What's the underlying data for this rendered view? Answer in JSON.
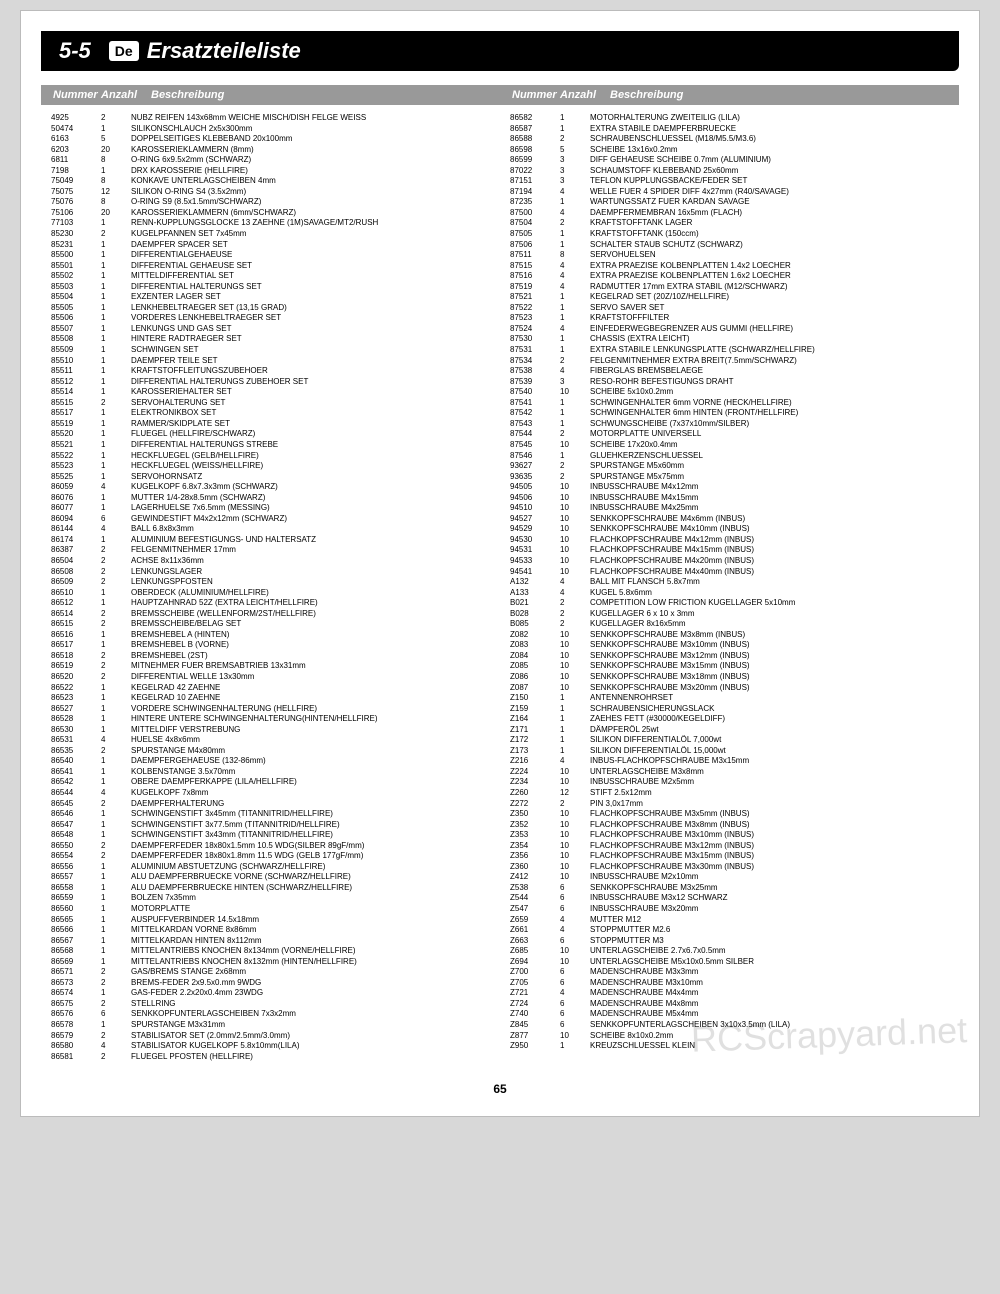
{
  "header": {
    "section_num": "5-5",
    "lang": "De",
    "title": "Ersatzteileliste"
  },
  "column_headers": {
    "num": "Nummer",
    "qty": "Anzahl",
    "desc": "Beschreibung"
  },
  "footer": {
    "page_num": "65"
  },
  "watermark": "RCScrapyard.net",
  "parts_left": [
    {
      "n": "4925",
      "q": "2",
      "d": "NUBZ REIFEN 143x68mm WEICHE MISCH/DISH FELGE WEISS"
    },
    {
      "n": "50474",
      "q": "1",
      "d": "SILIKONSCHLAUCH 2x5x300mm"
    },
    {
      "n": "6163",
      "q": "5",
      "d": "DOPPELSEITIGES KLEBEBAND 20x100mm"
    },
    {
      "n": "6203",
      "q": "20",
      "d": "KAROSSERIEKLAMMERN (8mm)"
    },
    {
      "n": "6811",
      "q": "8",
      "d": "O-RING 6x9.5x2mm (SCHWARZ)"
    },
    {
      "n": "7198",
      "q": "1",
      "d": "DRX KAROSSERIE (HELLFIRE)"
    },
    {
      "n": "75049",
      "q": "8",
      "d": "KONKAVE UNTERLAGSCHEIBEN 4mm"
    },
    {
      "n": "75075",
      "q": "12",
      "d": "SILIKON O-RING S4 (3.5x2mm)"
    },
    {
      "n": "75076",
      "q": "8",
      "d": "O-RING S9 (8.5x1.5mm/SCHWARZ)"
    },
    {
      "n": "75106",
      "q": "20",
      "d": "KAROSSERIEKLAMMERN (6mm/SCHWARZ)"
    },
    {
      "n": "77103",
      "q": "1",
      "d": "RENN-KUPPLUNGSGLOCKE 13 ZAEHNE (1M)SAVAGE/MT2/RUSH"
    },
    {
      "n": "85230",
      "q": "2",
      "d": "KUGELPFANNEN SET 7x45mm"
    },
    {
      "n": "85231",
      "q": "1",
      "d": "DAEMPFER SPACER SET"
    },
    {
      "n": "85500",
      "q": "1",
      "d": "DIFFERENTIALGEHAEUSE"
    },
    {
      "n": "85501",
      "q": "1",
      "d": "DIFFERENTIAL GEHAEUSE SET"
    },
    {
      "n": "85502",
      "q": "1",
      "d": "MITTELDIFFERENTIAL SET"
    },
    {
      "n": "85503",
      "q": "1",
      "d": "DIFFERENTIAL HALTERUNGS SET"
    },
    {
      "n": "85504",
      "q": "1",
      "d": "EXZENTER LAGER SET"
    },
    {
      "n": "85505",
      "q": "1",
      "d": "LENKHEBELTRAEGER SET (13,15 GRAD)"
    },
    {
      "n": "85506",
      "q": "1",
      "d": "VORDERES LENKHEBELTRAEGER SET"
    },
    {
      "n": "85507",
      "q": "1",
      "d": "LENKUNGS UND GAS SET"
    },
    {
      "n": "85508",
      "q": "1",
      "d": "HINTERE RADTRAEGER SET"
    },
    {
      "n": "85509",
      "q": "1",
      "d": "SCHWINGEN SET"
    },
    {
      "n": "85510",
      "q": "1",
      "d": "DAEMPFER TEILE SET"
    },
    {
      "n": "85511",
      "q": "1",
      "d": "KRAFTSTOFFLEITUNGSZUBEHOER"
    },
    {
      "n": "85512",
      "q": "1",
      "d": "DIFFERENTIAL HALTERUNGS ZUBEHOER SET"
    },
    {
      "n": "85514",
      "q": "1",
      "d": "KAROSSERIEHALTER SET"
    },
    {
      "n": "85515",
      "q": "2",
      "d": "SERVOHALTERUNG SET"
    },
    {
      "n": "85517",
      "q": "1",
      "d": "ELEKTRONIKBOX SET"
    },
    {
      "n": "85519",
      "q": "1",
      "d": "RAMMER/SKIDPLATE SET"
    },
    {
      "n": "85520",
      "q": "1",
      "d": "FLUEGEL (HELLFIRE/SCHWARZ)"
    },
    {
      "n": "85521",
      "q": "1",
      "d": "DIFFERENTIAL HALTERUNGS STREBE"
    },
    {
      "n": "85522",
      "q": "1",
      "d": "HECKFLUEGEL (GELB/HELLFIRE)"
    },
    {
      "n": "85523",
      "q": "1",
      "d": "HECKFLUEGEL (WEISS/HELLFIRE)"
    },
    {
      "n": "85525",
      "q": "1",
      "d": "SERVOHORNSATZ"
    },
    {
      "n": "86059",
      "q": "4",
      "d": "KUGELKOPF 6.8x7.3x3mm (SCHWARZ)"
    },
    {
      "n": "86076",
      "q": "1",
      "d": "MUTTER 1/4-28x8.5mm (SCHWARZ)"
    },
    {
      "n": "86077",
      "q": "1",
      "d": "LAGERHUELSE 7x6.5mm (MESSING)"
    },
    {
      "n": "86094",
      "q": "6",
      "d": "GEWINDESTIFT M4x2x12mm (SCHWARZ)"
    },
    {
      "n": "86144",
      "q": "4",
      "d": "BALL 6.8x8x3mm"
    },
    {
      "n": "86174",
      "q": "1",
      "d": "ALUMINIUM BEFESTIGUNGS- UND HALTERSATZ"
    },
    {
      "n": "86387",
      "q": "2",
      "d": "FELGENMITNEHMER 17mm"
    },
    {
      "n": "86504",
      "q": "2",
      "d": "ACHSE 8x11x36mm"
    },
    {
      "n": "86508",
      "q": "2",
      "d": "LENKUNGSLAGER"
    },
    {
      "n": "86509",
      "q": "2",
      "d": "LENKUNGSPFOSTEN"
    },
    {
      "n": "86510",
      "q": "1",
      "d": "OBERDECK (ALUMINIUM/HELLFIRE)"
    },
    {
      "n": "86512",
      "q": "1",
      "d": "HAUPTZAHNRAD 52Z (EXTRA LEICHT/HELLFIRE)"
    },
    {
      "n": "86514",
      "q": "2",
      "d": "BREMSSCHEIBE (WELLENFORM/2ST/HELLFIRE)"
    },
    {
      "n": "86515",
      "q": "2",
      "d": "BREMSSCHEIBE/BELAG SET"
    },
    {
      "n": "86516",
      "q": "1",
      "d": "BREMSHEBEL A (HINTEN)"
    },
    {
      "n": "86517",
      "q": "1",
      "d": "BREMSHEBEL B (VORNE)"
    },
    {
      "n": "86518",
      "q": "2",
      "d": "BREMSHEBEL (2ST)"
    },
    {
      "n": "86519",
      "q": "2",
      "d": "MITNEHMER FUER BREMSABTRIEB 13x31mm"
    },
    {
      "n": "86520",
      "q": "2",
      "d": "DIFFERENTIAL WELLE 13x30mm"
    },
    {
      "n": "86522",
      "q": "1",
      "d": "KEGELRAD 42 ZAEHNE"
    },
    {
      "n": "86523",
      "q": "1",
      "d": "KEGELRAD 10 ZAEHNE"
    },
    {
      "n": "86527",
      "q": "1",
      "d": "VORDERE SCHWINGENHALTERUNG (HELLFIRE)"
    },
    {
      "n": "86528",
      "q": "1",
      "d": "HINTERE UNTERE SCHWINGENHALTERUNG(HINTEN/HELLFIRE)"
    },
    {
      "n": "86530",
      "q": "1",
      "d": "MITTELDIFF VERSTREBUNG"
    },
    {
      "n": "86531",
      "q": "4",
      "d": "HUELSE 4x8x6mm"
    },
    {
      "n": "86535",
      "q": "2",
      "d": "SPURSTANGE M4x80mm"
    },
    {
      "n": "86540",
      "q": "1",
      "d": "DAEMPFERGEHAEUSE (132-86mm)"
    },
    {
      "n": "86541",
      "q": "1",
      "d": "KOLBENSTANGE 3.5x70mm"
    },
    {
      "n": "86542",
      "q": "1",
      "d": "OBERE DAEMPFERKAPPE (LILA/HELLFIRE)"
    },
    {
      "n": "86544",
      "q": "4",
      "d": "KUGELKOPF 7x8mm"
    },
    {
      "n": "86545",
      "q": "2",
      "d": "DAEMPFERHALTERUNG"
    },
    {
      "n": "86546",
      "q": "1",
      "d": "SCHWINGENSTIFT 3x45mm (TITANNITRID/HELLFIRE)"
    },
    {
      "n": "86547",
      "q": "1",
      "d": "SCHWINGENSTIFT 3x77.5mm (TITANNITRID/HELLFIRE)"
    },
    {
      "n": "86548",
      "q": "1",
      "d": "SCHWINGENSTIFT 3x43mm (TITANNITRID/HELLFIRE)"
    },
    {
      "n": "86550",
      "q": "2",
      "d": "DAEMPFERFEDER 18x80x1.5mm 10.5 WDG(SILBER 89gF/mm)"
    },
    {
      "n": "86554",
      "q": "2",
      "d": "DAEMPFERFEDER 18x80x1.8mm 11.5 WDG (GELB 177gF/mm)"
    },
    {
      "n": "86556",
      "q": "1",
      "d": "ALUMINIUM ABSTUETZUNG (SCHWARZ/HELLFIRE)"
    },
    {
      "n": "86557",
      "q": "1",
      "d": "ALU DAEMPFERBRUECKE VORNE (SCHWARZ/HELLFIRE)"
    },
    {
      "n": "86558",
      "q": "1",
      "d": "ALU DAEMPFERBRUECKE HINTEN (SCHWARZ/HELLFIRE)"
    },
    {
      "n": "86559",
      "q": "1",
      "d": "BOLZEN 7x35mm"
    },
    {
      "n": "86560",
      "q": "1",
      "d": "MOTORPLATTE"
    },
    {
      "n": "86565",
      "q": "1",
      "d": "AUSPUFFVERBINDER 14.5x18mm"
    },
    {
      "n": "86566",
      "q": "1",
      "d": "MITTELKARDAN VORNE 8x86mm"
    },
    {
      "n": "86567",
      "q": "1",
      "d": "MITTELKARDAN HINTEN 8x112mm"
    },
    {
      "n": "86568",
      "q": "1",
      "d": "MITTELANTRIEBS KNOCHEN 8x134mm (VORNE/HELLFIRE)"
    },
    {
      "n": "86569",
      "q": "1",
      "d": "MITTELANTRIEBS KNOCHEN 8x132mm (HINTEN/HELLFIRE)"
    },
    {
      "n": "86571",
      "q": "2",
      "d": "GAS/BREMS STANGE 2x68mm"
    },
    {
      "n": "86573",
      "q": "2",
      "d": "BREMS-FEDER 2x9.5x0.mm 9WDG"
    },
    {
      "n": "86574",
      "q": "1",
      "d": "GAS-FEDER 2.2x20x0.4mm 23WDG"
    },
    {
      "n": "86575",
      "q": "2",
      "d": "STELLRING"
    },
    {
      "n": "86576",
      "q": "6",
      "d": "SENKKOPFUNTERLAGSCHEIBEN 7x3x2mm"
    },
    {
      "n": "86578",
      "q": "1",
      "d": "SPURSTANGE M3x31mm"
    },
    {
      "n": "86579",
      "q": "2",
      "d": "STABILISATOR SET (2.0mm/2.5mm/3.0mm)"
    },
    {
      "n": "86580",
      "q": "4",
      "d": "STABILISATOR KUGELKOPF 5.8x10mm(LILA)"
    },
    {
      "n": "86581",
      "q": "2",
      "d": "FLUEGEL PFOSTEN (HELLFIRE)"
    }
  ],
  "parts_right": [
    {
      "n": "86582",
      "q": "1",
      "d": "MOTORHALTERUNG ZWEITEILIG (LILA)"
    },
    {
      "n": "86587",
      "q": "1",
      "d": "EXTRA STABILE DAEMPFERBRUECKE"
    },
    {
      "n": "86588",
      "q": "2",
      "d": "SCHRAUBENSCHLUESSEL (M18/M5.5/M3.6)"
    },
    {
      "n": "86598",
      "q": "5",
      "d": "SCHEIBE 13x16x0.2mm"
    },
    {
      "n": "86599",
      "q": "3",
      "d": "DIFF GEHAEUSE SCHEIBE 0.7mm (ALUMINIUM)"
    },
    {
      "n": "87022",
      "q": "3",
      "d": "SCHAUMSTOFF KLEBEBAND 25x60mm"
    },
    {
      "n": "87151",
      "q": "3",
      "d": "TEFLON KUPPLUNGSBACKE/FEDER SET"
    },
    {
      "n": "87194",
      "q": "4",
      "d": "WELLE FUER 4 SPIDER DIFF 4x27mm (R40/SAVAGE)"
    },
    {
      "n": "87235",
      "q": "1",
      "d": "WARTUNGSSATZ FUER KARDAN SAVAGE"
    },
    {
      "n": "87500",
      "q": "4",
      "d": "DAEMPFERMEMBRAN 16x5mm (FLACH)"
    },
    {
      "n": "87504",
      "q": "2",
      "d": "KRAFTSTOFFTANK LAGER"
    },
    {
      "n": "87505",
      "q": "1",
      "d": "KRAFTSTOFFTANK (150ccm)"
    },
    {
      "n": "87506",
      "q": "1",
      "d": "SCHALTER STAUB SCHUTZ (SCHWARZ)"
    },
    {
      "n": "87511",
      "q": "8",
      "d": "SERVOHUELSEN"
    },
    {
      "n": "87515",
      "q": "4",
      "d": "EXTRA PRAEZISE KOLBENPLATTEN 1.4x2 LOECHER"
    },
    {
      "n": "87516",
      "q": "4",
      "d": "EXTRA PRAEZISE KOLBENPLATTEN 1.6x2 LOECHER"
    },
    {
      "n": "87519",
      "q": "4",
      "d": "RADMUTTER 17mm EXTRA STABIL (M12/SCHWARZ)"
    },
    {
      "n": "87521",
      "q": "1",
      "d": "KEGELRAD SET (20Z/10Z/HELLFIRE)"
    },
    {
      "n": "87522",
      "q": "1",
      "d": "SERVO SAVER SET"
    },
    {
      "n": "87523",
      "q": "1",
      "d": "KRAFTSTOFFFILTER"
    },
    {
      "n": "87524",
      "q": "4",
      "d": "EINFEDERWEGBEGRENZER AUS GUMMI (HELLFIRE)"
    },
    {
      "n": "87530",
      "q": "1",
      "d": "CHASSIS (EXTRA LEICHT)"
    },
    {
      "n": "87531",
      "q": "1",
      "d": "EXTRA STABILE LENKUNGSPLATTE (SCHWARZ/HELLFIRE)"
    },
    {
      "n": "87534",
      "q": "2",
      "d": "FELGENMITNEHMER EXTRA BREIT(7.5mm/SCHWARZ)"
    },
    {
      "n": "87538",
      "q": "4",
      "d": "FIBERGLAS BREMSBELAEGE"
    },
    {
      "n": "87539",
      "q": "3",
      "d": "RESO-ROHR BEFESTIGUNGS DRAHT"
    },
    {
      "n": "87540",
      "q": "10",
      "d": "SCHEIBE 5x10x0.2mm"
    },
    {
      "n": "87541",
      "q": "1",
      "d": "SCHWINGENHALTER 6mm VORNE (HECK/HELLFIRE)"
    },
    {
      "n": "87542",
      "q": "1",
      "d": "SCHWINGENHALTER 6mm HINTEN (FRONT/HELLFIRE)"
    },
    {
      "n": "87543",
      "q": "1",
      "d": "SCHWUNGSCHEIBE (7x37x10mm/SILBER)"
    },
    {
      "n": "87544",
      "q": "2",
      "d": "MOTORPLATTE UNIVERSELL"
    },
    {
      "n": "87545",
      "q": "10",
      "d": "SCHEIBE 17x20x0.4mm"
    },
    {
      "n": "87546",
      "q": "1",
      "d": "GLUEHKERZENSCHLUESSEL"
    },
    {
      "n": "93627",
      "q": "2",
      "d": "SPURSTANGE M5x60mm"
    },
    {
      "n": "93635",
      "q": "2",
      "d": "SPURSTANGE M5x75mm"
    },
    {
      "n": "94505",
      "q": "10",
      "d": "INBUSSCHRAUBE M4x12mm"
    },
    {
      "n": "94506",
      "q": "10",
      "d": "INBUSSCHRAUBE M4x15mm"
    },
    {
      "n": "94510",
      "q": "10",
      "d": "INBUSSCHRAUBE M4x25mm"
    },
    {
      "n": "94527",
      "q": "10",
      "d": "SENKKOPFSCHRAUBE M4x6mm (INBUS)"
    },
    {
      "n": "94529",
      "q": "10",
      "d": "SENKKOPFSCHRAUBE M4x10mm (INBUS)"
    },
    {
      "n": "94530",
      "q": "10",
      "d": "FLACHKOPFSCHRAUBE M4x12mm (INBUS)"
    },
    {
      "n": "94531",
      "q": "10",
      "d": "FLACHKOPFSCHRAUBE M4x15mm (INBUS)"
    },
    {
      "n": "94533",
      "q": "10",
      "d": "FLACHKOPFSCHRAUBE M4x20mm (INBUS)"
    },
    {
      "n": "94541",
      "q": "10",
      "d": "FLACHKOPFSCHRAUBE M4x40mm (INBUS)"
    },
    {
      "n": "A132",
      "q": "4",
      "d": "BALL MIT FLANSCH 5.8x7mm"
    },
    {
      "n": "A133",
      "q": "4",
      "d": "KUGEL 5.8x6mm"
    },
    {
      "n": "B021",
      "q": "2",
      "d": "COMPETITION LOW FRICTION KUGELLAGER 5x10mm"
    },
    {
      "n": "B028",
      "q": "2",
      "d": "KUGELLAGER 6 x 10 x 3mm"
    },
    {
      "n": "B085",
      "q": "2",
      "d": "KUGELLAGER 8x16x5mm"
    },
    {
      "n": "Z082",
      "q": "10",
      "d": "SENKKOPFSCHRAUBE M3x8mm (INBUS)"
    },
    {
      "n": "Z083",
      "q": "10",
      "d": "SENKKOPFSCHRAUBE M3x10mm (INBUS)"
    },
    {
      "n": "Z084",
      "q": "10",
      "d": "SENKKOPFSCHRAUBE M3x12mm (INBUS)"
    },
    {
      "n": "Z085",
      "q": "10",
      "d": "SENKKOPFSCHRAUBE M3x15mm (INBUS)"
    },
    {
      "n": "Z086",
      "q": "10",
      "d": "SENKKOPFSCHRAUBE M3x18mm (INBUS)"
    },
    {
      "n": "Z087",
      "q": "10",
      "d": "SENKKOPFSCHRAUBE M3x20mm (INBUS)"
    },
    {
      "n": "Z150",
      "q": "1",
      "d": "ANTENNENROHRSET"
    },
    {
      "n": "Z159",
      "q": "1",
      "d": "SCHRAUBENSICHERUNGSLACK"
    },
    {
      "n": "Z164",
      "q": "1",
      "d": "ZAEHES FETT (#30000/KEGELDIFF)"
    },
    {
      "n": "Z171",
      "q": "1",
      "d": "DÄMPFERÖL 25wt"
    },
    {
      "n": "Z172",
      "q": "1",
      "d": "SILIKON DIFFERENTIALÖL 7,000wt"
    },
    {
      "n": "Z173",
      "q": "1",
      "d": "SILIKON DIFFERENTIALÖL 15,000wt"
    },
    {
      "n": "Z216",
      "q": "4",
      "d": "INBUS-FLACHKOPFSCHRAUBE M3x15mm"
    },
    {
      "n": "Z224",
      "q": "10",
      "d": "UNTERLAGSCHEIBE M3x8mm"
    },
    {
      "n": "Z234",
      "q": "10",
      "d": "INBUSSCHRAUBE M2x5mm"
    },
    {
      "n": "Z260",
      "q": "12",
      "d": "STIFT 2.5x12mm"
    },
    {
      "n": "Z272",
      "q": "2",
      "d": "PIN 3,0x17mm"
    },
    {
      "n": "Z350",
      "q": "10",
      "d": "FLACHKOPFSCHRAUBE M3x5mm (INBUS)"
    },
    {
      "n": "Z352",
      "q": "10",
      "d": "FLACHKOPFSCHRAUBE M3x8mm (INBUS)"
    },
    {
      "n": "Z353",
      "q": "10",
      "d": "FLACHKOPFSCHRAUBE M3x10mm (INBUS)"
    },
    {
      "n": "Z354",
      "q": "10",
      "d": "FLACHKOPFSCHRAUBE M3x12mm (INBUS)"
    },
    {
      "n": "Z356",
      "q": "10",
      "d": "FLACHKOPFSCHRAUBE M3x15mm (INBUS)"
    },
    {
      "n": "Z360",
      "q": "10",
      "d": "FLACHKOPFSCHRAUBE M3x30mm (INBUS)"
    },
    {
      "n": "Z412",
      "q": "10",
      "d": "INBUSSCHRAUBE M2x10mm"
    },
    {
      "n": "Z538",
      "q": "6",
      "d": "SENKKOPFSCHRAUBE M3x25mm"
    },
    {
      "n": "Z544",
      "q": "6",
      "d": "INBUSSCHRAUBE M3x12 SCHWARZ"
    },
    {
      "n": "Z547",
      "q": "6",
      "d": "INBUSSCHRAUBE M3x20mm"
    },
    {
      "n": "Z659",
      "q": "4",
      "d": "MUTTER M12"
    },
    {
      "n": "Z661",
      "q": "4",
      "d": "STOPPMUTTER M2.6"
    },
    {
      "n": "Z663",
      "q": "6",
      "d": "STOPPMUTTER M3"
    },
    {
      "n": "Z685",
      "q": "10",
      "d": "UNTERLAGSCHEIBE 2.7x6.7x0.5mm"
    },
    {
      "n": "Z694",
      "q": "10",
      "d": "UNTERLAGSCHEIBE M5x10x0.5mm SILBER"
    },
    {
      "n": "Z700",
      "q": "6",
      "d": "MADENSCHRAUBE M3x3mm"
    },
    {
      "n": "Z705",
      "q": "6",
      "d": "MADENSCHRAUBE M3x10mm"
    },
    {
      "n": "Z721",
      "q": "4",
      "d": "MADENSCHRAUBE M4x4mm"
    },
    {
      "n": "Z724",
      "q": "6",
      "d": "MADENSCHRAUBE M4x8mm"
    },
    {
      "n": "Z740",
      "q": "6",
      "d": "MADENSCHRAUBE M5x4mm"
    },
    {
      "n": "Z845",
      "q": "6",
      "d": "SENKKOPFUNTERLAGSCHEIBEN 3x10x3.5mm (LILA)"
    },
    {
      "n": "Z877",
      "q": "10",
      "d": "SCHEIBE 8x10x0.2mm"
    },
    {
      "n": "Z950",
      "q": "1",
      "d": "KREUZSCHLUESSEL KLEIN"
    }
  ]
}
